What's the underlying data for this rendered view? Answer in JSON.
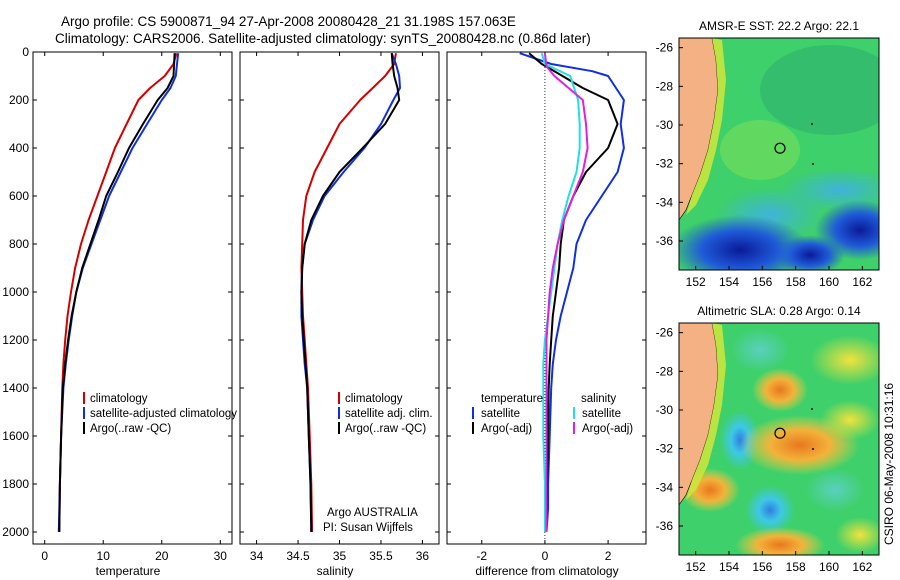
{
  "header": {
    "title_line1": "Argo profile: CS 5900871_94 27-Apr-2008 20080428_21 31.198S 157.063E",
    "title_line2": "Climatology: CARS2006. Satellite-adjusted climatology: synTS_20080428.nc (0.86d later)"
  },
  "colors": {
    "climatology": "#d40000",
    "satellite": "#1030e0",
    "argo": "#000000",
    "satellite_salinity": "#20e0e0",
    "argo_adj_salinity": "#e020e0",
    "land": "#f4b183"
  },
  "chart_data": [
    {
      "type": "line",
      "panel": "temperature",
      "xlabel": "temperature",
      "ylabel": "",
      "xlim": [
        -2,
        32
      ],
      "ylim": [
        2050,
        0
      ],
      "xticks": [
        0,
        10,
        20,
        30
      ],
      "yticks": [
        0,
        200,
        400,
        600,
        800,
        1000,
        1200,
        1400,
        1600,
        1800,
        2000
      ],
      "legend": [
        "climatology",
        "satellite-adjusted climatology",
        "Argo(..raw -QC)"
      ],
      "series": [
        {
          "name": "climatology",
          "color": "#d40000",
          "x": [
            22.5,
            22.0,
            20.5,
            18.0,
            16.0,
            14.0,
            12.0,
            10.5,
            9.0,
            7.5,
            6.2,
            5.2,
            4.5,
            3.9,
            3.5,
            3.2,
            3.0,
            2.8,
            2.6,
            2.5
          ],
          "y": [
            5,
            50,
            100,
            150,
            200,
            300,
            400,
            500,
            600,
            700,
            800,
            900,
            1000,
            1100,
            1200,
            1300,
            1400,
            1600,
            1800,
            2000
          ]
        },
        {
          "name": "satellite-adjusted climatology",
          "color": "#1030e0",
          "x": [
            22.8,
            22.6,
            22.4,
            21.5,
            20.0,
            17.5,
            15.0,
            13.0,
            11.0,
            9.5,
            8.0,
            6.5,
            5.4,
            4.7,
            4.1,
            3.6,
            3.2,
            2.8,
            2.6,
            2.4
          ],
          "y": [
            5,
            50,
            100,
            150,
            200,
            300,
            400,
            500,
            600,
            700,
            800,
            900,
            1000,
            1100,
            1200,
            1300,
            1400,
            1600,
            1800,
            2000
          ]
        },
        {
          "name": "Argo(..raw -QC)",
          "color": "#000000",
          "x": [
            22.2,
            22.1,
            22.0,
            21.0,
            19.3,
            16.8,
            14.4,
            12.5,
            10.5,
            9.2,
            7.8,
            6.4,
            5.4,
            4.6,
            4.0,
            3.5,
            3.1,
            2.8,
            2.6,
            2.5
          ],
          "y": [
            5,
            50,
            100,
            150,
            200,
            300,
            400,
            500,
            600,
            700,
            800,
            900,
            1000,
            1100,
            1200,
            1300,
            1400,
            1600,
            1800,
            2000
          ]
        }
      ]
    },
    {
      "type": "line",
      "panel": "salinity",
      "xlabel": "salinity",
      "ylabel": "",
      "xlim": [
        33.8,
        36.2
      ],
      "ylim": [
        2050,
        0
      ],
      "xticks": [
        34,
        34.5,
        35,
        35.5,
        36
      ],
      "yticks": [],
      "legend": [
        "climatology",
        "satellite adj. clim.",
        "Argo(..raw -QC)"
      ],
      "annotation": [
        "Argo AUSTRALIA",
        "PI: Susan Wijffels"
      ],
      "series": [
        {
          "name": "climatology",
          "color": "#d40000",
          "x": [
            35.68,
            35.66,
            35.55,
            35.4,
            35.25,
            35.0,
            34.85,
            34.7,
            34.6,
            34.56,
            34.55,
            34.54,
            34.55,
            34.56,
            34.58,
            34.6,
            34.62,
            34.64,
            34.66,
            34.67
          ],
          "y": [
            5,
            50,
            100,
            150,
            200,
            300,
            400,
            500,
            600,
            700,
            800,
            900,
            1000,
            1100,
            1200,
            1300,
            1400,
            1600,
            1800,
            2000
          ]
        },
        {
          "name": "satellite adj. clim.",
          "color": "#1030e0",
          "x": [
            35.63,
            35.68,
            35.72,
            35.73,
            35.65,
            35.5,
            35.3,
            35.05,
            34.82,
            34.68,
            34.58,
            34.55,
            34.54,
            34.54,
            34.56,
            34.58,
            34.61,
            34.63,
            34.65,
            34.66
          ],
          "y": [
            5,
            50,
            100,
            150,
            200,
            300,
            400,
            500,
            600,
            700,
            800,
            900,
            1000,
            1100,
            1200,
            1300,
            1400,
            1600,
            1800,
            2000
          ]
        },
        {
          "name": "Argo(..raw -QC)",
          "color": "#000000",
          "x": [
            35.63,
            35.64,
            35.66,
            35.7,
            35.72,
            35.55,
            35.28,
            35.0,
            34.8,
            34.66,
            34.58,
            34.55,
            34.54,
            34.55,
            34.57,
            34.59,
            34.61,
            34.63,
            34.65,
            34.66
          ],
          "y": [
            5,
            50,
            100,
            150,
            200,
            300,
            400,
            500,
            600,
            700,
            800,
            900,
            1000,
            1100,
            1200,
            1300,
            1400,
            1600,
            1800,
            2000
          ]
        }
      ]
    },
    {
      "type": "line",
      "panel": "difference",
      "xlabel": "difference from climatology",
      "ylabel": "",
      "xlim": [
        -3.1,
        3.2
      ],
      "ylim": [
        2050,
        0
      ],
      "xticks": [
        -2,
        0,
        2
      ],
      "yticks": [],
      "legend_groups": [
        {
          "title": "temperature",
          "entries": [
            "satellite",
            "Argo(-adj)"
          ]
        },
        {
          "title": "salinity",
          "entries": [
            "satellite",
            "Argo(-adj)"
          ]
        }
      ],
      "series": [
        {
          "name": "temperature satellite",
          "color": "#1030e0",
          "x": [
            -0.8,
            0.2,
            1.5,
            2.0,
            2.5,
            2.4,
            2.5,
            2.3,
            1.8,
            1.3,
            1.0,
            0.9,
            0.7,
            0.5,
            0.35,
            0.25,
            0.2,
            0.15,
            0.1,
            0.1,
            0.05
          ],
          "y": [
            5,
            50,
            80,
            100,
            200,
            300,
            400,
            500,
            600,
            700,
            800,
            900,
            1000,
            1100,
            1200,
            1300,
            1400,
            1600,
            1800,
            1900,
            2000
          ]
        },
        {
          "name": "temperature Argo(-adj)",
          "color": "#000000",
          "x": [
            -0.5,
            -0.1,
            0.3,
            1.2,
            2.0,
            2.3,
            2.0,
            1.3,
            0.9,
            0.6,
            0.5,
            0.45,
            0.35,
            0.25,
            0.2,
            0.15,
            0.12,
            0.1,
            0.07,
            0.05
          ],
          "y": [
            5,
            50,
            80,
            150,
            200,
            300,
            400,
            500,
            600,
            700,
            800,
            900,
            1000,
            1100,
            1200,
            1300,
            1400,
            1600,
            1800,
            2000
          ]
        },
        {
          "name": "salinity satellite",
          "color": "#20e0e0",
          "x": [
            -0.1,
            0.0,
            0.8,
            1.05,
            1.1,
            1.1,
            1.0,
            0.75,
            0.55,
            0.4,
            0.3,
            0.2,
            0.1,
            0.0,
            -0.05,
            -0.05,
            -0.05,
            0.0,
            0.0
          ],
          "y": [
            5,
            50,
            100,
            200,
            300,
            400,
            500,
            600,
            700,
            800,
            900,
            1000,
            1100,
            1200,
            1300,
            1400,
            1600,
            1800,
            2000
          ]
        },
        {
          "name": "salinity Argo(-adj)",
          "color": "#e020e0",
          "x": [
            0.0,
            0.05,
            0.3,
            1.2,
            1.3,
            1.35,
            1.2,
            0.9,
            0.6,
            0.4,
            0.25,
            0.15,
            0.1,
            0.05,
            0.05,
            0.05,
            0.05,
            0.05
          ],
          "y": [
            5,
            60,
            100,
            200,
            300,
            400,
            500,
            600,
            700,
            800,
            900,
            1000,
            1100,
            1200,
            1300,
            1400,
            1600,
            2000
          ]
        }
      ]
    }
  ],
  "maps": [
    {
      "title": "AMSR-E SST: 22.2 Argo: 22.1",
      "xticks": [
        "152",
        "154",
        "156",
        "158",
        "160",
        "162"
      ],
      "yticks": [
        "-26",
        "-28",
        "-30",
        "-32",
        "-34",
        "-36"
      ],
      "xlim": [
        151,
        163
      ],
      "ylim": [
        -37.5,
        -25.5
      ],
      "argo_position": {
        "lon": 157.063,
        "lat": -31.198
      }
    },
    {
      "title": "Altimetric SLA: 0.28 Argo: 0.14",
      "xticks": [
        "152",
        "154",
        "156",
        "158",
        "160",
        "162"
      ],
      "yticks": [
        "-26",
        "-28",
        "-30",
        "-32",
        "-34",
        "-36"
      ],
      "xlim": [
        151,
        163
      ],
      "ylim": [
        -37.5,
        -25.5
      ],
      "argo_position": {
        "lon": 157.063,
        "lat": -31.198
      }
    }
  ],
  "footer": {
    "credit": "CSIRO 06-May-2008 10:31:16"
  }
}
